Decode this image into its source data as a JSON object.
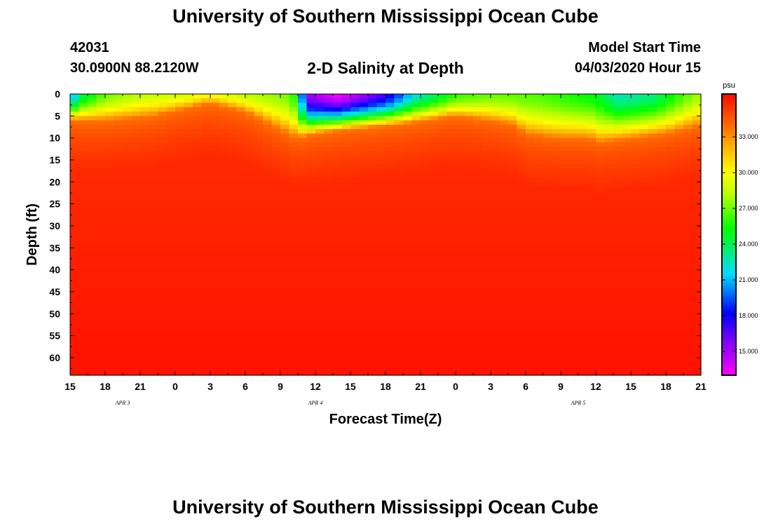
{
  "header": {
    "title": "University of Southern Mississippi Ocean Cube",
    "footer_title": "University of Southern Mississippi Ocean Cube",
    "station_id": "42031",
    "station_position": "30.0900N 88.2120W",
    "chart_title": "2-D Salinity at Depth",
    "model_start_label": "Model Start Time",
    "model_start_value": "04/03/2020 Hour 15"
  },
  "chart_data": {
    "type": "heatmap",
    "title": "2-D Salinity at Depth",
    "xlabel": "Forecast Time(Z)",
    "ylabel": "Depth (ft)",
    "x_tick_labels": [
      "15",
      "18",
      "21",
      "0",
      "3",
      "6",
      "9",
      "12",
      "15",
      "18",
      "21",
      "0",
      "3",
      "6",
      "9",
      "12",
      "15",
      "18",
      "21"
    ],
    "x_hours_from_start": [
      0,
      3,
      6,
      9,
      12,
      15,
      18,
      21,
      24,
      27,
      30,
      33,
      36,
      39,
      42,
      45,
      48,
      51,
      54
    ],
    "day_labels": [
      {
        "label": "APR 3",
        "hour": 4.5
      },
      {
        "label": "APR 4",
        "hour": 21
      },
      {
        "label": "APR 5",
        "hour": 43.5
      }
    ],
    "y_tick_labels": [
      "0",
      "5",
      "10",
      "15",
      "20",
      "25",
      "30",
      "35",
      "40",
      "45",
      "50",
      "55",
      "60"
    ],
    "y_ticks": [
      0,
      5,
      10,
      15,
      20,
      25,
      30,
      35,
      40,
      45,
      50,
      55,
      60
    ],
    "ylim": [
      0,
      64
    ],
    "xlim": [
      0,
      54
    ],
    "colorbar": {
      "unit": "psu",
      "range": [
        13,
        36.6
      ],
      "tick_labels": [
        "33.000",
        "30.000",
        "27.000",
        "24.000",
        "21.000",
        "18.000",
        "15.000"
      ],
      "tick_values": [
        33,
        30,
        27,
        24,
        21,
        18,
        15
      ]
    },
    "mixed_layer_depth_ft": [
      {
        "hour": 0,
        "depth": 6
      },
      {
        "hour": 3,
        "depth": 6
      },
      {
        "hour": 7,
        "depth": 5
      },
      {
        "hour": 12,
        "depth": 2
      },
      {
        "hour": 15,
        "depth": 4
      },
      {
        "hour": 18,
        "depth": 8
      },
      {
        "hour": 19.5,
        "depth": 10
      },
      {
        "hour": 21,
        "depth": 9
      },
      {
        "hour": 24,
        "depth": 8
      },
      {
        "hour": 28,
        "depth": 7
      },
      {
        "hour": 33,
        "depth": 5
      },
      {
        "hour": 36,
        "depth": 6
      },
      {
        "hour": 38,
        "depth": 7
      },
      {
        "hour": 39,
        "depth": 9
      },
      {
        "hour": 42,
        "depth": 10
      },
      {
        "hour": 44.5,
        "depth": 10
      },
      {
        "hour": 45,
        "depth": 11
      },
      {
        "hour": 48,
        "depth": 10
      },
      {
        "hour": 51,
        "depth": 9
      },
      {
        "hour": 54,
        "depth": 7
      }
    ],
    "surface_salinity_psu": [
      {
        "hour": 0,
        "value": 20
      },
      {
        "hour": 1,
        "value": 24
      },
      {
        "hour": 3,
        "value": 27
      },
      {
        "hour": 6,
        "value": 28.5
      },
      {
        "hour": 10,
        "value": 29
      },
      {
        "hour": 12,
        "value": 30
      },
      {
        "hour": 15,
        "value": 28.5
      },
      {
        "hour": 19,
        "value": 27
      },
      {
        "hour": 20.5,
        "value": 15
      },
      {
        "hour": 23,
        "value": 13
      },
      {
        "hour": 27,
        "value": 17
      },
      {
        "hour": 29.5,
        "value": 22
      },
      {
        "hour": 33,
        "value": 26
      },
      {
        "hour": 36,
        "value": 27
      },
      {
        "hour": 40,
        "value": 26.5
      },
      {
        "hour": 45,
        "value": 25
      },
      {
        "hour": 47,
        "value": 22.5
      },
      {
        "hour": 50,
        "value": 23.5
      },
      {
        "hour": 53,
        "value": 27
      },
      {
        "hour": 54,
        "value": 28
      }
    ],
    "deep_salinity_psu": 35.8,
    "bottom_salinity_psu": 36.4
  }
}
